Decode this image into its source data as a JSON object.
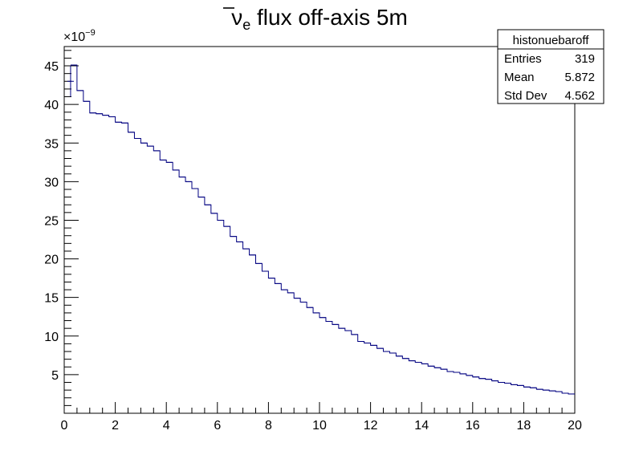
{
  "chart_data": {
    "type": "bar",
    "style": "step-histogram",
    "title": {
      "symbol": "ν",
      "subscript": "e",
      "text": " flux off-axis 5m"
    },
    "xlabel": "",
    "ylabel": "",
    "xlim": [
      0,
      20
    ],
    "ylim": [
      0,
      47.5
    ],
    "y_multiplier": "×10",
    "y_multiplier_exponent": "−9",
    "x_ticks": [
      0,
      2,
      4,
      6,
      8,
      10,
      12,
      14,
      16,
      18,
      20
    ],
    "y_ticks": [
      5,
      10,
      15,
      20,
      25,
      30,
      35,
      40,
      45
    ],
    "grid": false,
    "line_color": "#000080",
    "bin_width": 0.25,
    "bin_start": 0.25,
    "series": [
      {
        "values": [
          45.1,
          41.8,
          40.4,
          38.9,
          38.8,
          38.6,
          38.4,
          37.7,
          37.6,
          36.4,
          35.6,
          35.0,
          34.6,
          34.0,
          32.8,
          32.5,
          31.5,
          30.6,
          30.0,
          29.1,
          28.0,
          27.0,
          25.9,
          25.0,
          24.2,
          22.9,
          22.2,
          21.3,
          20.5,
          19.4,
          18.4,
          17.5,
          16.8,
          16.0,
          15.6,
          14.9,
          14.4,
          13.7,
          13.0,
          12.4,
          11.9,
          11.5,
          11.0,
          10.7,
          10.2,
          9.3,
          9.1,
          8.8,
          8.4,
          8.0,
          7.8,
          7.4,
          7.1,
          6.8,
          6.6,
          6.4,
          6.1,
          5.9,
          5.7,
          5.4,
          5.3,
          5.1,
          4.9,
          4.7,
          4.5,
          4.4,
          4.2,
          4.0,
          3.9,
          3.7,
          3.6,
          3.4,
          3.3,
          3.1,
          3.0,
          2.9,
          2.8,
          2.6,
          2.5
        ]
      }
    ],
    "error_bar": {
      "x": 0.25,
      "y": 43.0,
      "low": 41.0,
      "high": 45.0
    },
    "stats_box": {
      "name": "histonuebaroff",
      "rows": [
        {
          "label": "Entries",
          "value": "319"
        },
        {
          "label": "Mean",
          "value": "5.872"
        },
        {
          "label": "Std Dev",
          "value": "4.562"
        }
      ]
    }
  }
}
